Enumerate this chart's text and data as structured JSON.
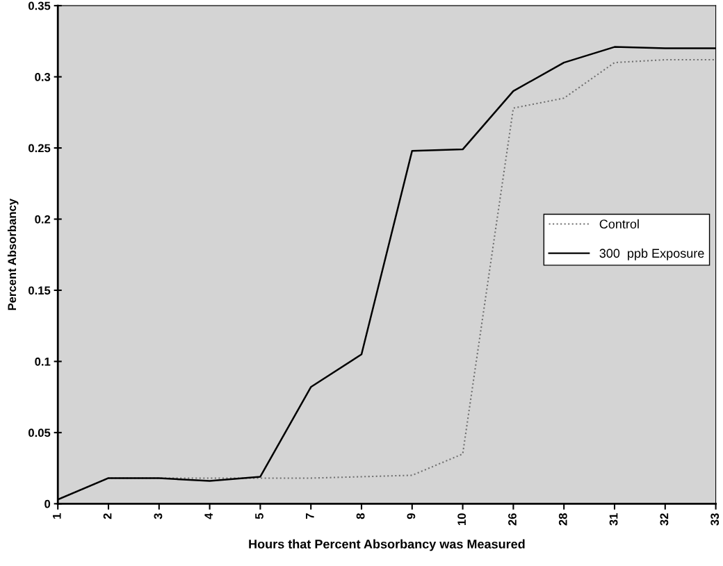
{
  "chart_data": {
    "type": "line",
    "xlabel": "Hours that Percent Absorbancy was Measured",
    "ylabel": "Percent Absorbancy",
    "categories": [
      "1",
      "2",
      "3",
      "4",
      "5",
      "7",
      "8",
      "9",
      "10",
      "26",
      "28",
      "31",
      "32",
      "33"
    ],
    "series": [
      {
        "name": "Control",
        "color": "#707070",
        "line_style": "dotted",
        "values": [
          0.003,
          0.018,
          0.018,
          0.018,
          0.018,
          0.018,
          0.019,
          0.02,
          0.035,
          0.278,
          0.285,
          0.31,
          0.312,
          0.312
        ]
      },
      {
        "name": "300  ppb Exposure",
        "color": "#000000",
        "line_style": "solid",
        "values": [
          0.003,
          0.018,
          0.018,
          0.016,
          0.019,
          0.082,
          0.105,
          0.248,
          0.249,
          0.29,
          0.31,
          0.321,
          0.32,
          0.32
        ]
      }
    ],
    "ylim": [
      0,
      0.35
    ],
    "yticks": [
      0,
      0.05,
      0.1,
      0.15,
      0.2,
      0.25,
      0.3,
      0.35
    ],
    "grid": false,
    "legend": "right",
    "marker": "none"
  }
}
